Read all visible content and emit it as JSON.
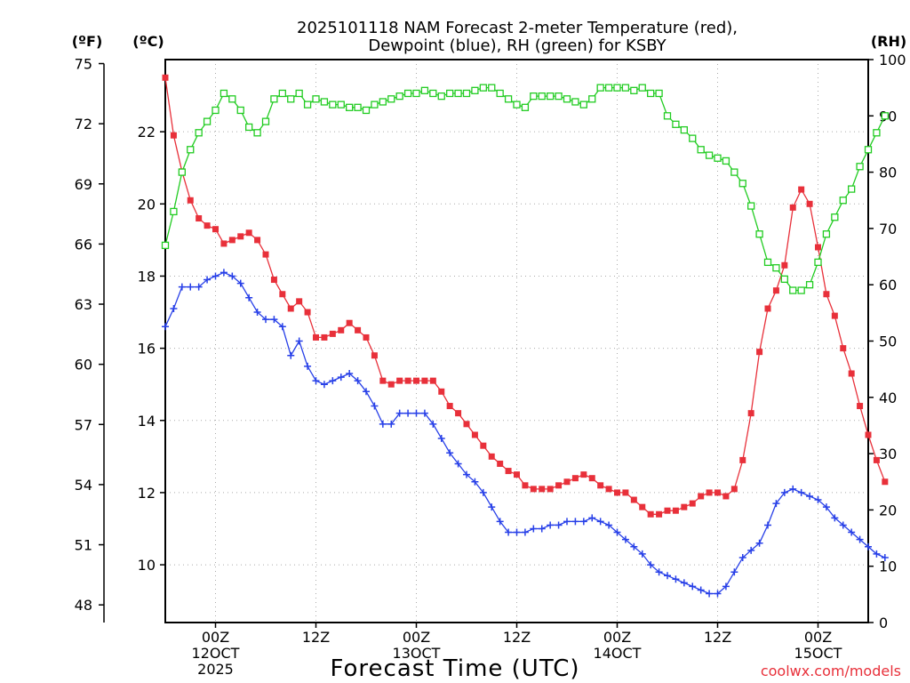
{
  "chart_data": {
    "type": "line",
    "title_line1": "2025101118 NAM Forecast 2-meter Temperature (red),",
    "title_line2": "Dewpoint (blue), RH (green) for KSBY",
    "xlabel": "Forecast Time (UTC)",
    "credit": "coolwx.com/models",
    "left_unit_f": "(ºF)",
    "left_unit_c": "(ºC)",
    "right_unit": "(RH)",
    "x_range_hours": [
      0,
      84
    ],
    "ylim_c": [
      8.4,
      24
    ],
    "ylim_rh": [
      0,
      100
    ],
    "x_ticks": [
      {
        "hour": 6,
        "label1": "00Z",
        "label2": "12OCT",
        "label3": "2025"
      },
      {
        "hour": 18,
        "label1": "12Z",
        "label2": "",
        "label3": ""
      },
      {
        "hour": 30,
        "label1": "00Z",
        "label2": "13OCT",
        "label3": ""
      },
      {
        "hour": 42,
        "label1": "12Z",
        "label2": "",
        "label3": ""
      },
      {
        "hour": 54,
        "label1": "00Z",
        "label2": "14OCT",
        "label3": ""
      },
      {
        "hour": 66,
        "label1": "12Z",
        "label2": "",
        "label3": ""
      },
      {
        "hour": 78,
        "label1": "00Z",
        "label2": "15OCT",
        "label3": ""
      }
    ],
    "celsius_ticks": [
      "10",
      "12",
      "14",
      "16",
      "18",
      "20",
      "22"
    ],
    "fahrenheit_ticks": [
      "48",
      "51",
      "54",
      "57",
      "60",
      "63",
      "66",
      "69",
      "72",
      "75"
    ],
    "rh_ticks": [
      "0",
      "10",
      "20",
      "30",
      "40",
      "50",
      "60",
      "70",
      "80",
      "90",
      "100"
    ],
    "series": [
      {
        "name": "Temperature",
        "unit": "C",
        "color": "#e8303a",
        "marker": "filled-square",
        "values": [
          23.5,
          21.9,
          20.9,
          20.1,
          19.6,
          19.4,
          19.3,
          18.9,
          19.0,
          19.1,
          19.2,
          19.0,
          18.6,
          17.9,
          17.5,
          17.1,
          17.3,
          17.0,
          16.3,
          16.3,
          16.4,
          16.5,
          16.7,
          16.5,
          16.3,
          15.8,
          15.1,
          15.0,
          15.1,
          15.1,
          15.1,
          15.1,
          15.1,
          14.8,
          14.4,
          14.2,
          13.9,
          13.6,
          13.3,
          13.0,
          12.8,
          12.6,
          12.5,
          12.2,
          12.1,
          12.1,
          12.1,
          12.2,
          12.3,
          12.4,
          12.5,
          12.4,
          12.2,
          12.1,
          12.0,
          12.0,
          11.8,
          11.6,
          11.4,
          11.4,
          11.5,
          11.5,
          11.6,
          11.7,
          11.9,
          12.0,
          12.0,
          11.9,
          12.1,
          12.9,
          14.2,
          15.9,
          17.1,
          17.6,
          18.3,
          19.9,
          20.4,
          20.0,
          18.8,
          17.5,
          16.9,
          16.0,
          15.3,
          14.4,
          13.6,
          12.9,
          12.3
        ]
      },
      {
        "name": "Dewpoint",
        "unit": "C",
        "color": "#2840e8",
        "marker": "plus",
        "values": [
          16.6,
          17.1,
          17.7,
          17.7,
          17.7,
          17.9,
          18.0,
          18.1,
          18.0,
          17.8,
          17.4,
          17.0,
          16.8,
          16.8,
          16.6,
          15.8,
          16.2,
          15.5,
          15.1,
          15.0,
          15.1,
          15.2,
          15.3,
          15.1,
          14.8,
          14.4,
          13.9,
          13.9,
          14.2,
          14.2,
          14.2,
          14.2,
          13.9,
          13.5,
          13.1,
          12.8,
          12.5,
          12.3,
          12.0,
          11.6,
          11.2,
          10.9,
          10.9,
          10.9,
          11.0,
          11.0,
          11.1,
          11.1,
          11.2,
          11.2,
          11.2,
          11.3,
          11.2,
          11.1,
          10.9,
          10.7,
          10.5,
          10.3,
          10.0,
          9.8,
          9.7,
          9.6,
          9.5,
          9.4,
          9.3,
          9.2,
          9.2,
          9.4,
          9.8,
          10.2,
          10.4,
          10.6,
          11.1,
          11.7,
          12.0,
          12.1,
          12.0,
          11.9,
          11.8,
          11.6,
          11.3,
          11.1,
          10.9,
          10.7,
          10.5,
          10.3,
          10.2
        ]
      },
      {
        "name": "RH",
        "unit": "%",
        "color": "#22cc22",
        "marker": "open-square",
        "values": [
          67,
          73,
          80,
          84,
          87,
          89,
          91,
          94,
          93,
          91,
          88,
          87,
          89,
          93,
          94,
          93,
          94,
          92,
          93,
          92.5,
          92,
          92,
          91.5,
          91.5,
          91,
          92,
          92.5,
          93,
          93.5,
          94,
          94,
          94.5,
          94,
          93.5,
          94,
          94,
          94,
          94.5,
          95,
          95,
          94,
          93,
          92,
          91.5,
          93.5,
          93.5,
          93.5,
          93.5,
          93,
          92.5,
          92,
          93,
          95,
          95,
          95,
          95,
          94.5,
          95,
          94,
          94,
          90,
          88.5,
          87.5,
          86,
          84,
          83,
          82.5,
          82,
          80,
          78,
          74,
          69,
          64,
          63,
          61,
          59,
          59,
          60,
          64,
          69,
          72,
          75,
          77,
          81,
          84,
          87,
          90
        ]
      }
    ]
  }
}
